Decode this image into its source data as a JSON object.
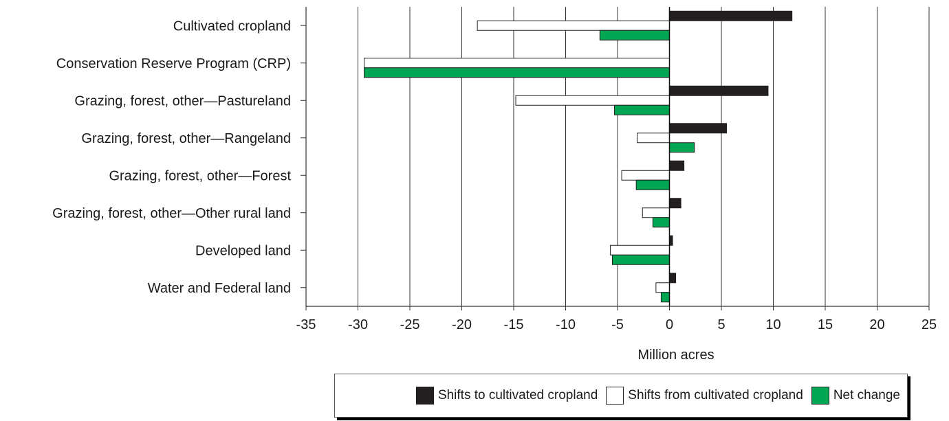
{
  "chart_data": {
    "type": "bar",
    "orientation": "horizontal",
    "categories": [
      "Cultivated cropland",
      "Conservation Reserve Program (CRP)",
      "Grazing, forest, other—Pastureland",
      "Grazing, forest, other—Rangeland",
      "Grazing, forest, other—Forest",
      "Grazing, forest, other—Other rural land",
      "Developed land",
      "Water and Federal land"
    ],
    "series": [
      {
        "name": "Shifts to cultivated cropland",
        "color": "#231f20",
        "values": [
          11.8,
          0,
          9.5,
          5.5,
          1.4,
          1.1,
          0.3,
          0.6
        ]
      },
      {
        "name": "Shifts from cultivated cropland",
        "color": "#ffffff",
        "values": [
          -18.5,
          -29.4,
          -14.8,
          -3.1,
          -4.6,
          -2.6,
          -5.7,
          -1.3
        ]
      },
      {
        "name": "Net change",
        "color": "#00a651",
        "values": [
          -6.7,
          -29.4,
          -5.3,
          2.4,
          -3.2,
          -1.6,
          -5.5,
          -0.8
        ]
      }
    ],
    "xlabel": "Million acres",
    "xlim": [
      -35,
      25
    ],
    "xticks": [
      -35,
      -30,
      -25,
      -20,
      -15,
      -10,
      -5,
      0,
      5,
      10,
      15,
      20,
      25
    ],
    "grid": true,
    "legend_position": "bottom-right"
  },
  "legend": {
    "items": [
      {
        "label": "Shifts to cultivated cropland",
        "color": "#231f20"
      },
      {
        "label": "Shifts from cultivated cropland",
        "color": "#ffffff"
      },
      {
        "label": "Net change",
        "color": "#00a651"
      }
    ]
  }
}
